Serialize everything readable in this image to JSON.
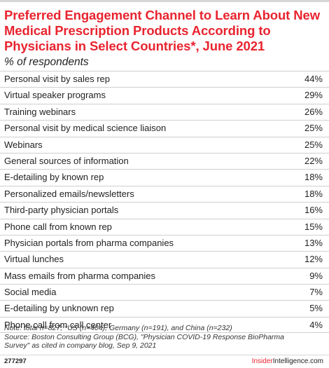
{
  "chart_data": {
    "type": "table",
    "title": "Preferred Engagement Channel to Learn About New Medical Prescription Products According to Physicians in Select Countries*, June 2021",
    "subtitle": "% of respondents",
    "rows": [
      {
        "label": "Personal visit by sales rep",
        "value": "44%"
      },
      {
        "label": "Virtual speaker programs",
        "value": "29%"
      },
      {
        "label": "Training webinars",
        "value": "26%"
      },
      {
        "label": "Personal visit by medical science liaison",
        "value": "25%"
      },
      {
        "label": "Webinars",
        "value": "25%"
      },
      {
        "label": "General sources of information",
        "value": "22%"
      },
      {
        "label": "E-detailing by known rep",
        "value": "18%"
      },
      {
        "label": "Personalized emails/newsletters",
        "value": "18%"
      },
      {
        "label": "Third-party physician portals",
        "value": "16%"
      },
      {
        "label": "Phone call from known rep",
        "value": "15%"
      },
      {
        "label": "Physician portals from pharma companies",
        "value": "13%"
      },
      {
        "label": "Virtual lunches",
        "value": "12%"
      },
      {
        "label": "Mass emails from pharma companies",
        "value": "9%"
      },
      {
        "label": "Social media",
        "value": "7%"
      },
      {
        "label": "E-detailing by unknown rep",
        "value": "5%"
      },
      {
        "label": "Phone call from call center",
        "value": "4%"
      }
    ],
    "values": [
      44,
      29,
      26,
      25,
      25,
      22,
      18,
      18,
      16,
      15,
      13,
      12,
      9,
      7,
      5,
      4
    ]
  },
  "notes": {
    "line1": "Note: total n=827; *US (n=404), Germany (n=191), and China (n=232)",
    "line2": "Source: Boston Consulting Group (BCG), \"Physician COVID-19 Response BioPharma",
    "line3": "Survey\" as cited in company blog, Sep 9, 2021"
  },
  "footer": {
    "chart_id": "277297",
    "brand_main": "Insider",
    "brand_rest": "Intelligence.com"
  },
  "colors": {
    "title": "#e8242f",
    "text": "#222222",
    "rule": "#cfcfcf"
  }
}
